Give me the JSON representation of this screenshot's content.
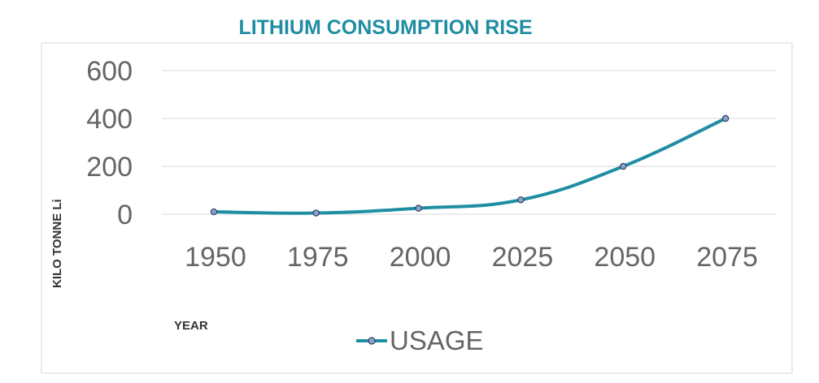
{
  "chart_data": {
    "type": "line",
    "title": "LITHIUM CONSUMPTION RISE",
    "xlabel": "YEAR",
    "ylabel": "KILO TONNE Li",
    "categories": [
      "1950",
      "1975",
      "2000",
      "2025",
      "2050",
      "2075"
    ],
    "series": [
      {
        "name": "USAGE",
        "values": [
          10,
          5,
          25,
          60,
          200,
          400
        ],
        "color": "#1f8ea3",
        "marker_fill": "#8ea3c8"
      }
    ],
    "y_ticks": [
      "0",
      "200",
      "400",
      "600"
    ],
    "ylim": [
      0,
      600
    ],
    "grid": true,
    "legend": "bottom"
  }
}
